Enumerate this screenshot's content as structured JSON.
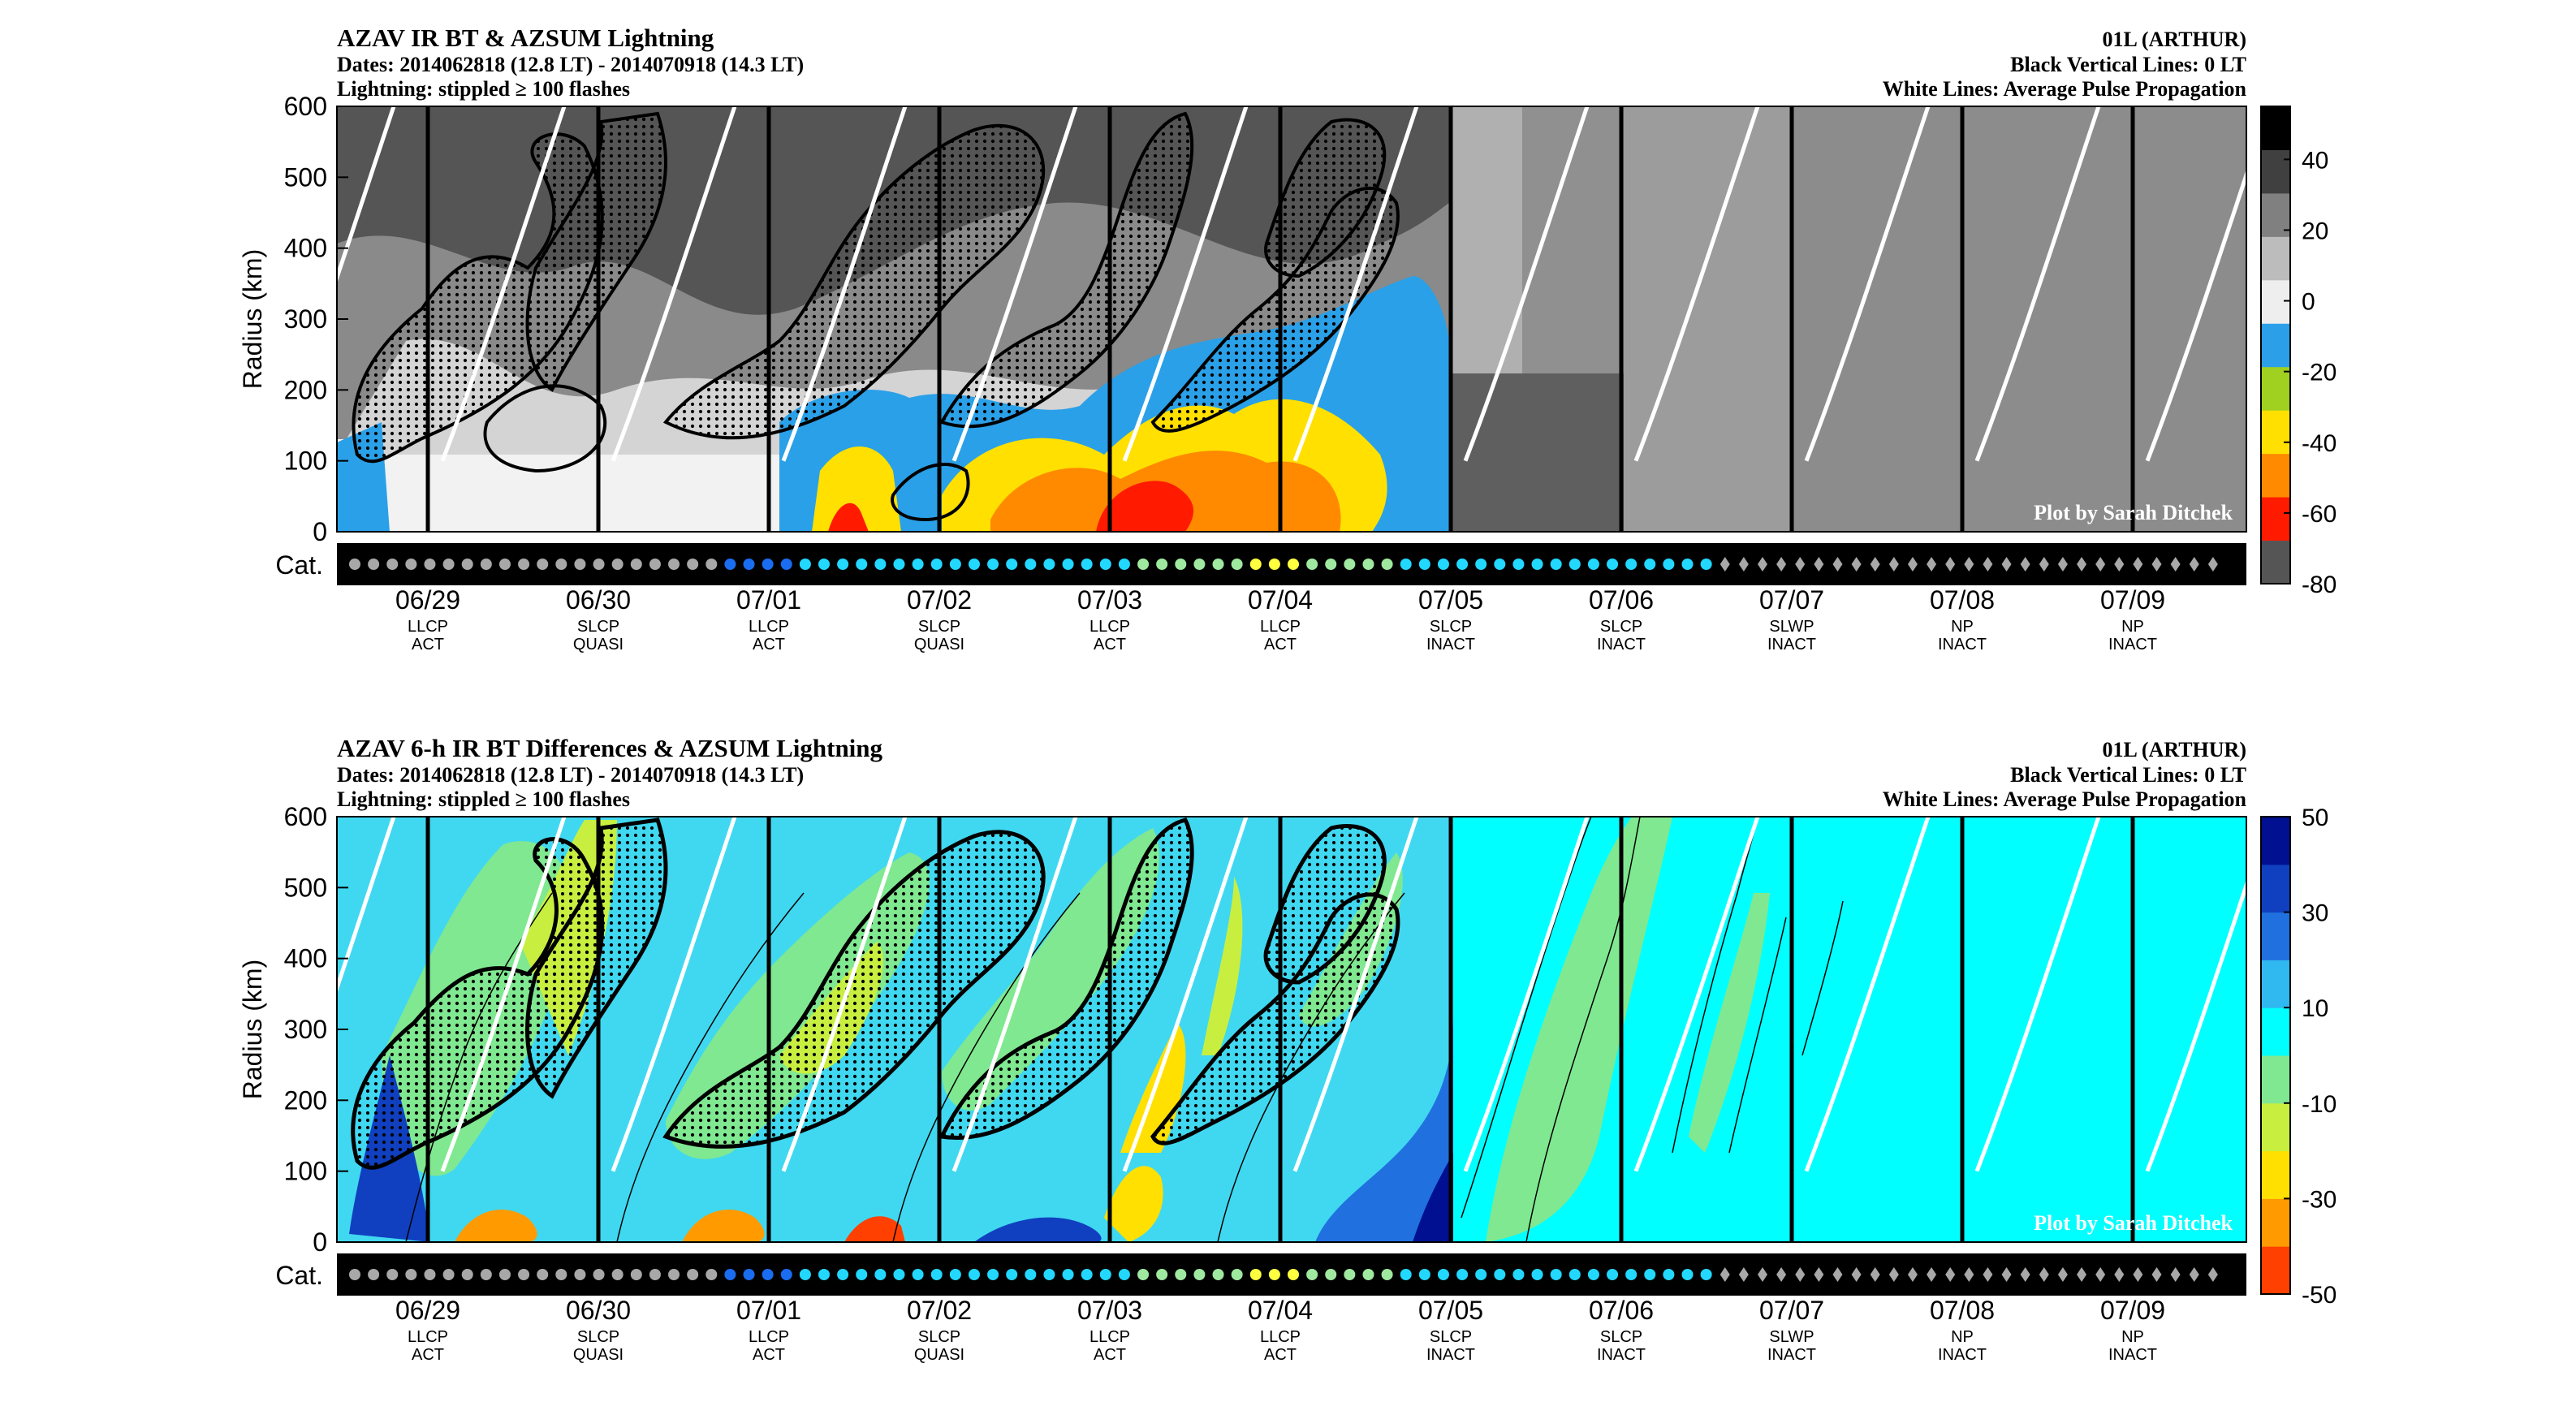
{
  "colors": {
    "stroke": "#000000",
    "propagation": "#ffffff",
    "catbar": "#000000"
  },
  "chart_data": [
    {
      "type": "heatmap",
      "id": "top",
      "title": "AZAV IR BT & AZSUM Lightning",
      "subtitle1": "Dates: 2014062818 (12.8 LT) - 2014070918 (14.3 LT)",
      "subtitle2": "Lightning: stippled ≥ 100 flashes",
      "right1": "01L (ARTHUR)",
      "right2": "Black Vertical Lines: 0 LT",
      "right3": "White Lines: Average Pulse Propagation",
      "ylabel": "Radius (km)",
      "ylim": [
        0,
        600
      ],
      "yticks": [
        "0",
        "100",
        "200",
        "300",
        "400",
        "500",
        "600"
      ],
      "cat_label": "Cat.",
      "credit": "Plot by Sarah Ditchek",
      "colorbar_ticks": [
        "40",
        "20",
        "0",
        "-20",
        "-40",
        "-60",
        "-80"
      ],
      "colorbar_range": [
        -80,
        55
      ],
      "colorbar_colors": [
        "#555555",
        "#ff1a00",
        "#ff8a00",
        "#ffe000",
        "#a0d020",
        "#2ba0e8",
        "#eeeeee",
        "#bcbcbc",
        "#808080",
        "#404040",
        "#000000"
      ]
    },
    {
      "type": "heatmap",
      "id": "bottom",
      "title": "AZAV 6-h IR BT Differences & AZSUM Lightning",
      "subtitle1": "Dates: 2014062818 (12.8 LT) - 2014070918 (14.3 LT)",
      "subtitle2": "Lightning: stippled ≥ 100 flashes",
      "right1": "01L (ARTHUR)",
      "right2": "Black Vertical Lines: 0 LT",
      "right3": "White Lines: Average Pulse Propagation",
      "ylabel": "Radius (km)",
      "ylim": [
        0,
        600
      ],
      "yticks": [
        "0",
        "100",
        "200",
        "300",
        "400",
        "500",
        "600"
      ],
      "cat_label": "Cat.",
      "credit": "Plot by Sarah Ditchek",
      "colorbar_ticks": [
        "50",
        "30",
        "10",
        "-10",
        "-30",
        "-50"
      ],
      "colorbar_range": [
        -50,
        50
      ],
      "colorbar_colors": [
        "#ff4000",
        "#ff9a00",
        "#ffe000",
        "#c8ef40",
        "#80e890",
        "#00ffff",
        "#30b8f0",
        "#2070e0",
        "#1040c0",
        "#001090"
      ]
    }
  ],
  "days": [
    {
      "date": "06/29",
      "line1": "LLCP",
      "line2": "ACT"
    },
    {
      "date": "06/30",
      "line1": "SLCP",
      "line2": "QUASI"
    },
    {
      "date": "07/01",
      "line1": "LLCP",
      "line2": "ACT"
    },
    {
      "date": "07/02",
      "line1": "SLCP",
      "line2": "QUASI"
    },
    {
      "date": "07/03",
      "line1": "LLCP",
      "line2": "ACT"
    },
    {
      "date": "07/04",
      "line1": "LLCP",
      "line2": "ACT"
    },
    {
      "date": "07/05",
      "line1": "SLCP",
      "line2": "INACT"
    },
    {
      "date": "07/06",
      "line1": "SLCP",
      "line2": "INACT"
    },
    {
      "date": "07/07",
      "line1": "SLWP",
      "line2": "INACT"
    },
    {
      "date": "07/08",
      "line1": "NP",
      "line2": "INACT"
    },
    {
      "date": "07/09",
      "line1": "NP",
      "line2": "INACT"
    }
  ],
  "categories": {
    "legend_colors": {
      "gray": "#a8a8a8",
      "blue": "#1a6cf0",
      "cyan": "#22d8ff",
      "lightgreen": "#9fe8a0",
      "yellow": "#ffff40"
    },
    "sequence": [
      "gray",
      "gray",
      "gray",
      "gray",
      "gray",
      "gray",
      "gray",
      "gray",
      "gray",
      "gray",
      "gray",
      "gray",
      "gray",
      "gray",
      "gray",
      "gray",
      "gray",
      "gray",
      "gray",
      "gray",
      "blue",
      "blue",
      "blue",
      "blue",
      "cyan",
      "cyan",
      "cyan",
      "cyan",
      "cyan",
      "cyan",
      "cyan",
      "cyan",
      "cyan",
      "cyan",
      "cyan",
      "cyan",
      "cyan",
      "cyan",
      "cyan",
      "cyan",
      "cyan",
      "cyan",
      "lightgreen",
      "lightgreen",
      "lightgreen",
      "lightgreen",
      "lightgreen",
      "lightgreen",
      "yellow",
      "yellow",
      "yellow",
      "lightgreen",
      "lightgreen",
      "lightgreen",
      "lightgreen",
      "lightgreen",
      "cyan",
      "cyan",
      "cyan",
      "cyan",
      "cyan",
      "cyan",
      "cyan",
      "cyan",
      "cyan",
      "cyan",
      "cyan",
      "cyan",
      "cyan",
      "cyan",
      "cyan",
      "cyan",
      "cyan"
    ],
    "remainder_shape": "diamond",
    "remainder_color": "#a8a8a8"
  }
}
